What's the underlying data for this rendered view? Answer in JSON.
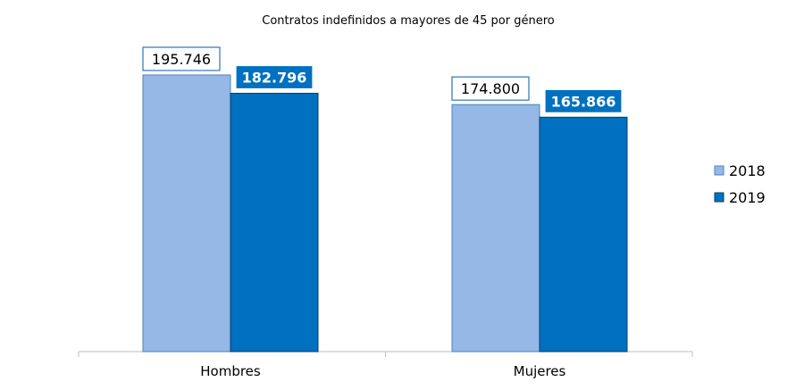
{
  "chart_data": {
    "type": "bar",
    "title": "Contratos indefinidos a mayores de 45 por género",
    "categories": [
      "Hombres",
      "Mujeres"
    ],
    "series": [
      {
        "name": "2018",
        "values": [
          195746,
          174800
        ],
        "labels": [
          "195.746",
          "174.800"
        ],
        "color": "#95B8E6",
        "border": "#4F81BD"
      },
      {
        "name": "2019",
        "values": [
          182796,
          165866
        ],
        "labels": [
          "182.796",
          "165.866"
        ],
        "color": "#0070C0",
        "border": "#003F6E"
      }
    ],
    "ylim": [
      0,
      200000
    ],
    "grid": false,
    "legend": "right"
  }
}
